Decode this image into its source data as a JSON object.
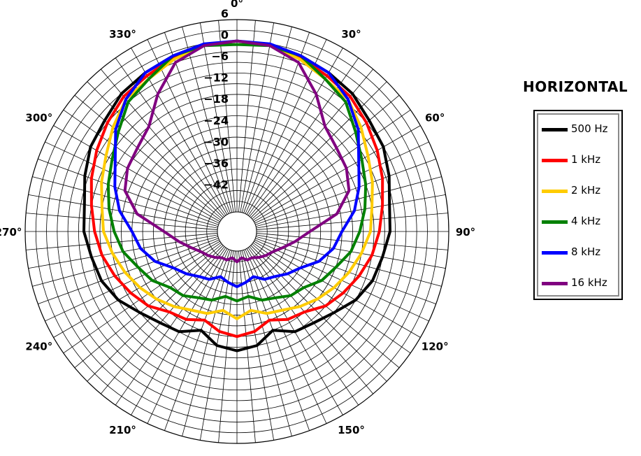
{
  "chart_data": {
    "type": "polar-line",
    "title": "HORIZONTAL",
    "angle_unit": "degrees",
    "angle_direction": "clockwise",
    "angle_zero": "top",
    "radial_unit": "dB",
    "rlim": [
      -48,
      6
    ],
    "radial_ticks": [
      6,
      0,
      -6,
      -12,
      -18,
      -24,
      -30,
      -36,
      -42
    ],
    "radial_tick_labels": [
      "6",
      "0",
      "−6",
      "−12",
      "−18",
      "−24",
      "−30",
      "−36",
      "−42"
    ],
    "angle_ticks": [
      0,
      30,
      60,
      90,
      120,
      150,
      180,
      210,
      240,
      270,
      300,
      330
    ],
    "angle_tick_labels": [
      "0°",
      "30°",
      "60°",
      "90°",
      "120°",
      "150°",
      "180°",
      "210°",
      "240°",
      "270°",
      "300°",
      "330°"
    ],
    "grid": true,
    "legend_position": "right",
    "series": [
      {
        "name": "500 Hz",
        "color": "#000000",
        "points": [
          [
            0,
            0
          ],
          [
            10,
            -0.5
          ],
          [
            20,
            -1
          ],
          [
            30,
            -2
          ],
          [
            40,
            -3
          ],
          [
            50,
            -5
          ],
          [
            60,
            -6
          ],
          [
            70,
            -8
          ],
          [
            80,
            -10
          ],
          [
            90,
            -10.5
          ],
          [
            100,
            -12
          ],
          [
            110,
            -13
          ],
          [
            120,
            -15
          ],
          [
            130,
            -18
          ],
          [
            140,
            -20
          ],
          [
            150,
            -21
          ],
          [
            160,
            -24
          ],
          [
            170,
            -21
          ],
          [
            180,
            -20
          ],
          [
            190,
            -21
          ],
          [
            200,
            -24
          ],
          [
            210,
            -21
          ],
          [
            220,
            -20
          ],
          [
            230,
            -18
          ],
          [
            240,
            -15
          ],
          [
            250,
            -13
          ],
          [
            260,
            -12
          ],
          [
            270,
            -10.5
          ],
          [
            280,
            -10
          ],
          [
            290,
            -8
          ],
          [
            300,
            -6
          ],
          [
            310,
            -5
          ],
          [
            320,
            -3
          ],
          [
            330,
            -2
          ],
          [
            340,
            -1
          ],
          [
            350,
            -0.5
          ]
        ]
      },
      {
        "name": "1 kHz",
        "color": "#ff0000",
        "points": [
          [
            0,
            0
          ],
          [
            10,
            -0.5
          ],
          [
            20,
            -1.5
          ],
          [
            30,
            -3
          ],
          [
            40,
            -4
          ],
          [
            50,
            -6
          ],
          [
            60,
            -8
          ],
          [
            70,
            -10
          ],
          [
            80,
            -12
          ],
          [
            90,
            -13.5
          ],
          [
            100,
            -15
          ],
          [
            110,
            -17
          ],
          [
            120,
            -19
          ],
          [
            130,
            -21
          ],
          [
            140,
            -24
          ],
          [
            150,
            -25
          ],
          [
            160,
            -27
          ],
          [
            170,
            -25
          ],
          [
            180,
            -24
          ],
          [
            190,
            -25
          ],
          [
            200,
            -27
          ],
          [
            210,
            -25
          ],
          [
            220,
            -24
          ],
          [
            230,
            -21
          ],
          [
            240,
            -19
          ],
          [
            250,
            -17
          ],
          [
            260,
            -15
          ],
          [
            270,
            -13.5
          ],
          [
            280,
            -12
          ],
          [
            290,
            -10
          ],
          [
            300,
            -8
          ],
          [
            310,
            -6
          ],
          [
            320,
            -4
          ],
          [
            330,
            -3
          ],
          [
            340,
            -1.5
          ],
          [
            350,
            -0.5
          ]
        ]
      },
      {
        "name": "2 kHz",
        "color": "#ffcc00",
        "points": [
          [
            0,
            0
          ],
          [
            10,
            -0.5
          ],
          [
            20,
            -2
          ],
          [
            30,
            -4
          ],
          [
            40,
            -5
          ],
          [
            50,
            -8
          ],
          [
            60,
            -11
          ],
          [
            70,
            -13
          ],
          [
            80,
            -15
          ],
          [
            90,
            -16
          ],
          [
            100,
            -18
          ],
          [
            110,
            -20
          ],
          [
            120,
            -22
          ],
          [
            130,
            -24
          ],
          [
            140,
            -26
          ],
          [
            150,
            -28
          ],
          [
            160,
            -29
          ],
          [
            170,
            -31
          ],
          [
            180,
            -29
          ],
          [
            190,
            -31
          ],
          [
            200,
            -29
          ],
          [
            210,
            -28
          ],
          [
            220,
            -26
          ],
          [
            230,
            -24
          ],
          [
            240,
            -22
          ],
          [
            250,
            -20
          ],
          [
            260,
            -18
          ],
          [
            270,
            -16
          ],
          [
            280,
            -15
          ],
          [
            290,
            -13
          ],
          [
            300,
            -11
          ],
          [
            310,
            -8
          ],
          [
            320,
            -5
          ],
          [
            330,
            -4
          ],
          [
            340,
            -2
          ],
          [
            350,
            -0.5
          ]
        ]
      },
      {
        "name": "4 kHz",
        "color": "#008000",
        "points": [
          [
            0,
            -1
          ],
          [
            10,
            -0.5
          ],
          [
            20,
            -1
          ],
          [
            30,
            -4
          ],
          [
            40,
            -6
          ],
          [
            50,
            -10
          ],
          [
            60,
            -13
          ],
          [
            70,
            -15
          ],
          [
            80,
            -17
          ],
          [
            90,
            -19
          ],
          [
            100,
            -21
          ],
          [
            110,
            -24
          ],
          [
            120,
            -26
          ],
          [
            130,
            -29
          ],
          [
            140,
            -30
          ],
          [
            150,
            -32
          ],
          [
            160,
            -33
          ],
          [
            170,
            -35
          ],
          [
            180,
            -34
          ],
          [
            190,
            -35
          ],
          [
            200,
            -33
          ],
          [
            210,
            -32
          ],
          [
            220,
            -30
          ],
          [
            230,
            -29
          ],
          [
            240,
            -26
          ],
          [
            250,
            -24
          ],
          [
            260,
            -21
          ],
          [
            270,
            -19
          ],
          [
            280,
            -17
          ],
          [
            290,
            -15
          ],
          [
            300,
            -13
          ],
          [
            310,
            -10
          ],
          [
            320,
            -6
          ],
          [
            330,
            -4
          ],
          [
            340,
            -1
          ],
          [
            350,
            -0.5
          ]
        ]
      },
      {
        "name": "8 kHz",
        "color": "#0000ff",
        "points": [
          [
            0,
            0
          ],
          [
            10,
            0
          ],
          [
            20,
            -1
          ],
          [
            30,
            -2
          ],
          [
            40,
            -5
          ],
          [
            50,
            -9
          ],
          [
            60,
            -14
          ],
          [
            70,
            -17
          ],
          [
            80,
            -20
          ],
          [
            90,
            -24
          ],
          [
            100,
            -26
          ],
          [
            110,
            -29
          ],
          [
            120,
            -33
          ],
          [
            130,
            -35
          ],
          [
            140,
            -37
          ],
          [
            150,
            -38
          ],
          [
            160,
            -40
          ],
          [
            170,
            -39
          ],
          [
            180,
            -38
          ],
          [
            190,
            -39
          ],
          [
            200,
            -40
          ],
          [
            210,
            -38
          ],
          [
            220,
            -37
          ],
          [
            230,
            -35
          ],
          [
            240,
            -33
          ],
          [
            250,
            -29
          ],
          [
            260,
            -26
          ],
          [
            270,
            -24
          ],
          [
            280,
            -20
          ],
          [
            290,
            -17
          ],
          [
            300,
            -14
          ],
          [
            310,
            -9
          ],
          [
            320,
            -5
          ],
          [
            330,
            -2
          ],
          [
            340,
            -1
          ],
          [
            350,
            0
          ]
        ]
      },
      {
        "name": "16 kHz",
        "color": "#800080",
        "points": [
          [
            0,
            0
          ],
          [
            10,
            -0.5
          ],
          [
            20,
            -3
          ],
          [
            30,
            -9
          ],
          [
            40,
            -15
          ],
          [
            50,
            -17
          ],
          [
            60,
            -18
          ],
          [
            70,
            -20
          ],
          [
            80,
            -25
          ],
          [
            90,
            -33
          ],
          [
            100,
            -37
          ],
          [
            110,
            -40
          ],
          [
            120,
            -42
          ],
          [
            130,
            -43
          ],
          [
            140,
            -44
          ],
          [
            150,
            -45
          ],
          [
            160,
            -45
          ],
          [
            170,
            -46
          ],
          [
            180,
            -45
          ],
          [
            190,
            -46
          ],
          [
            200,
            -45
          ],
          [
            210,
            -45
          ],
          [
            220,
            -44
          ],
          [
            230,
            -43
          ],
          [
            240,
            -42
          ],
          [
            250,
            -40
          ],
          [
            260,
            -37
          ],
          [
            270,
            -33
          ],
          [
            280,
            -25
          ],
          [
            290,
            -20
          ],
          [
            300,
            -18
          ],
          [
            310,
            -17
          ],
          [
            320,
            -15
          ],
          [
            330,
            -9
          ],
          [
            340,
            -3
          ],
          [
            350,
            -0.5
          ]
        ]
      }
    ]
  }
}
